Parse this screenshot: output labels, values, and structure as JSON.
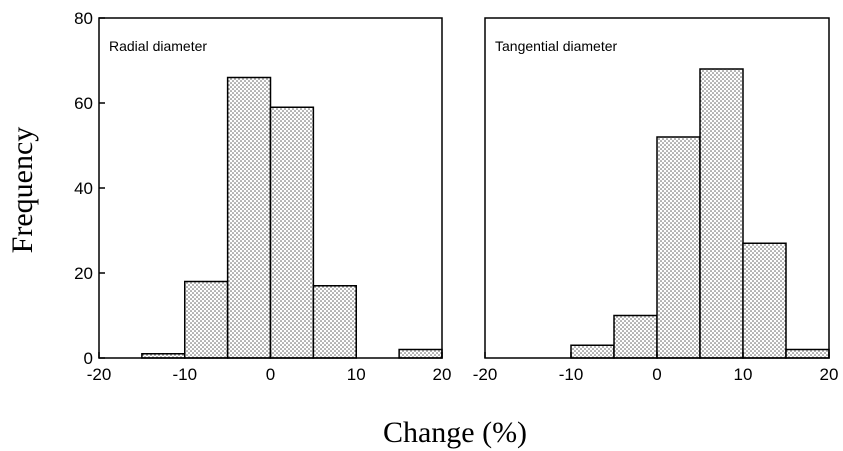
{
  "figure": {
    "ylabel": "Frequency",
    "xlabel": "Change (%)"
  },
  "chart_data": [
    {
      "type": "bar",
      "title": "Radial diameter",
      "bin_edges": [
        -20,
        -15,
        -10,
        -5,
        0,
        5,
        10,
        15,
        20
      ],
      "values": [
        0,
        1,
        18,
        66,
        59,
        17,
        0,
        2
      ],
      "xlim": [
        -20,
        20
      ],
      "ylim": [
        0,
        80
      ],
      "xticks": [
        -20,
        -10,
        0,
        10,
        20
      ],
      "yticks": [
        0,
        20,
        40,
        60,
        80
      ],
      "xlabel": "Change (%)",
      "ylabel": "Frequency",
      "grid": false,
      "fill": "dotted pattern"
    },
    {
      "type": "bar",
      "title": "Tangential diameter",
      "bin_edges": [
        -20,
        -15,
        -10,
        -5,
        0,
        5,
        10,
        15,
        20
      ],
      "values": [
        0,
        0,
        3,
        10,
        52,
        68,
        27,
        2
      ],
      "xlim": [
        -20,
        20
      ],
      "ylim": [
        0,
        80
      ],
      "xticks": [
        -20,
        -10,
        0,
        10,
        20
      ],
      "yticks": [],
      "xlabel": "Change (%)",
      "ylabel": "",
      "grid": false,
      "fill": "dotted pattern"
    }
  ]
}
